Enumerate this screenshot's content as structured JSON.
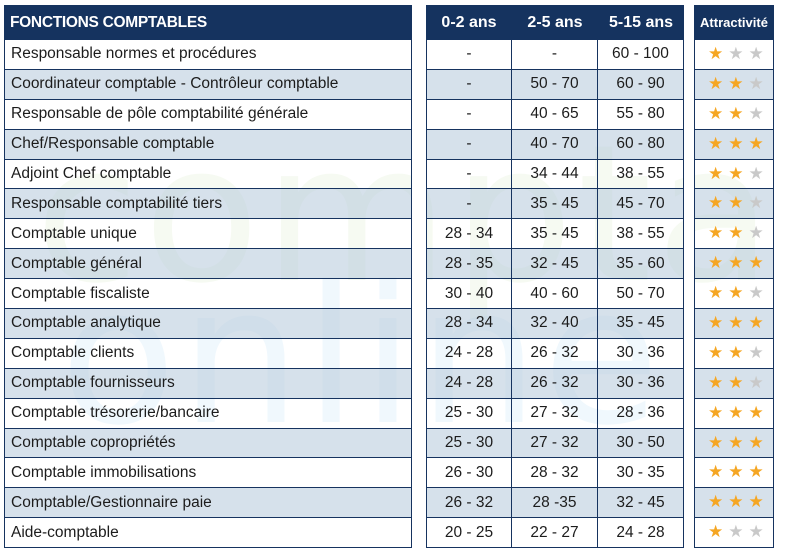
{
  "watermark": {
    "line1": "compta",
    "line2": "online"
  },
  "header": {
    "function": "FONCTIONS COMPTABLES",
    "col1": "0-2 ans",
    "col2": "2-5 ans",
    "col3": "5-15 ans",
    "rating": "Attractivité"
  },
  "colors": {
    "header_bg": "#15335f",
    "row_alt": "#cbd8e5",
    "star_on": "#f5a623",
    "star_off": "#c9c9c9"
  },
  "rows": [
    {
      "name": "Responsable normes et procédures",
      "y0_2": "-",
      "y2_5": "-",
      "y5_15": "60 - 100",
      "stars": 1
    },
    {
      "name": "Coordinateur comptable - Contrôleur comptable",
      "y0_2": "-",
      "y2_5": "50 - 70",
      "y5_15": "60 - 90",
      "stars": 2
    },
    {
      "name": "Responsable de pôle comptabilité générale",
      "y0_2": "-",
      "y2_5": "40 - 65",
      "y5_15": "55 - 80",
      "stars": 2
    },
    {
      "name": "Chef/Responsable comptable",
      "y0_2": "-",
      "y2_5": "40 - 70",
      "y5_15": "60 - 80",
      "stars": 3
    },
    {
      "name": "Adjoint Chef comptable",
      "y0_2": "-",
      "y2_5": "34 - 44",
      "y5_15": "38 - 55",
      "stars": 2
    },
    {
      "name": "Responsable comptabilité tiers",
      "y0_2": "-",
      "y2_5": "35 - 45",
      "y5_15": "45 - 70",
      "stars": 2
    },
    {
      "name": "Comptable unique",
      "y0_2": "28 - 34",
      "y2_5": "35 - 45",
      "y5_15": "38 - 55",
      "stars": 2
    },
    {
      "name": "Comptable général",
      "y0_2": "28 - 35",
      "y2_5": "32 - 45",
      "y5_15": "35 - 60",
      "stars": 3
    },
    {
      "name": "Comptable fiscaliste",
      "y0_2": "30 - 40",
      "y2_5": "40 - 60",
      "y5_15": "50 - 70",
      "stars": 2
    },
    {
      "name": "Comptable analytique",
      "y0_2": "28 - 34",
      "y2_5": "32 - 40",
      "y5_15": "35 - 45",
      "stars": 3
    },
    {
      "name": "Comptable clients",
      "y0_2": "24 - 28",
      "y2_5": "26 - 32",
      "y5_15": "30 - 36",
      "stars": 2
    },
    {
      "name": "Comptable fournisseurs",
      "y0_2": "24 - 28",
      "y2_5": "26 - 32",
      "y5_15": "30 - 36",
      "stars": 2
    },
    {
      "name": "Comptable trésorerie/bancaire",
      "y0_2": "25 - 30",
      "y2_5": "27 - 32",
      "y5_15": "28 - 36",
      "stars": 3
    },
    {
      "name": "Comptable copropriétés",
      "y0_2": "25 - 30",
      "y2_5": "27 - 32",
      "y5_15": "30 - 50",
      "stars": 3
    },
    {
      "name": "Comptable immobilisations",
      "y0_2": "26 - 30",
      "y2_5": "28 - 32",
      "y5_15": "30 - 35",
      "stars": 3
    },
    {
      "name": "Comptable/Gestionnaire paie",
      "y0_2": "26 - 32",
      "y2_5": "28 -35",
      "y5_15": "32 - 45",
      "stars": 3
    },
    {
      "name": "Aide-comptable",
      "y0_2": "20 - 25",
      "y2_5": "22 - 27",
      "y5_15": "24 - 28",
      "stars": 1
    }
  ]
}
